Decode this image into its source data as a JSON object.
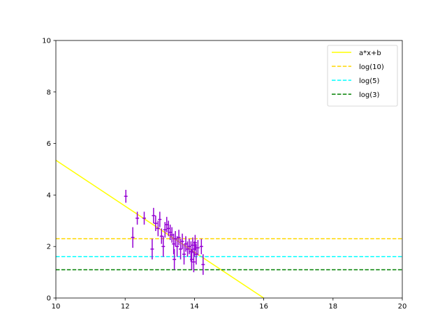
{
  "chart_data": {
    "type": "scatter",
    "title": "",
    "xlabel": "",
    "ylabel": "",
    "xlim": [
      10,
      20
    ],
    "ylim": [
      0,
      10
    ],
    "xticks": [
      10,
      12,
      14,
      16,
      18,
      20
    ],
    "yticks": [
      0,
      2,
      4,
      6,
      8,
      10
    ],
    "grid": false,
    "legend_position": "top-right",
    "lines": [
      {
        "name": "a*x+b",
        "kind": "fit",
        "x": [
          10,
          16
        ],
        "y": [
          5.35,
          0.0
        ],
        "color": "#ffff00",
        "dash": "solid"
      },
      {
        "name": "log(10)",
        "kind": "hline",
        "y": 2.303,
        "color": "#ffd700",
        "dash": "dashed"
      },
      {
        "name": "log(5)",
        "kind": "hline",
        "y": 1.609,
        "color": "#00ffff",
        "dash": "dashed"
      },
      {
        "name": "log(3)",
        "kind": "hline",
        "y": 1.099,
        "color": "#008000",
        "dash": "dashed"
      }
    ],
    "errorbar_series": {
      "color": "#9400d3",
      "xerr": 0.05,
      "points": [
        {
          "x": 12.02,
          "y": 3.95,
          "yerr": 0.25
        },
        {
          "x": 12.22,
          "y": 2.35,
          "yerr": 0.4
        },
        {
          "x": 12.35,
          "y": 3.1,
          "yerr": 0.25
        },
        {
          "x": 12.55,
          "y": 3.1,
          "yerr": 0.25
        },
        {
          "x": 12.78,
          "y": 1.9,
          "yerr": 0.4
        },
        {
          "x": 12.82,
          "y": 3.2,
          "yerr": 0.3
        },
        {
          "x": 12.88,
          "y": 2.9,
          "yerr": 0.3
        },
        {
          "x": 12.95,
          "y": 2.7,
          "yerr": 0.3
        },
        {
          "x": 13.0,
          "y": 3.05,
          "yerr": 0.3
        },
        {
          "x": 13.05,
          "y": 2.4,
          "yerr": 0.3
        },
        {
          "x": 13.1,
          "y": 2.0,
          "yerr": 0.4
        },
        {
          "x": 13.15,
          "y": 2.65,
          "yerr": 0.3
        },
        {
          "x": 13.2,
          "y": 2.85,
          "yerr": 0.3
        },
        {
          "x": 13.25,
          "y": 2.7,
          "yerr": 0.3
        },
        {
          "x": 13.3,
          "y": 2.55,
          "yerr": 0.3
        },
        {
          "x": 13.35,
          "y": 2.45,
          "yerr": 0.3
        },
        {
          "x": 13.4,
          "y": 2.1,
          "yerr": 0.4
        },
        {
          "x": 13.42,
          "y": 1.5,
          "yerr": 0.4
        },
        {
          "x": 13.45,
          "y": 2.3,
          "yerr": 0.3
        },
        {
          "x": 13.5,
          "y": 2.0,
          "yerr": 0.4
        },
        {
          "x": 13.55,
          "y": 2.35,
          "yerr": 0.3
        },
        {
          "x": 13.6,
          "y": 1.9,
          "yerr": 0.4
        },
        {
          "x": 13.65,
          "y": 2.2,
          "yerr": 0.3
        },
        {
          "x": 13.7,
          "y": 1.7,
          "yerr": 0.4
        },
        {
          "x": 13.75,
          "y": 2.1,
          "yerr": 0.3
        },
        {
          "x": 13.8,
          "y": 1.9,
          "yerr": 0.3
        },
        {
          "x": 13.85,
          "y": 2.0,
          "yerr": 0.3
        },
        {
          "x": 13.9,
          "y": 1.8,
          "yerr": 0.4
        },
        {
          "x": 13.92,
          "y": 1.5,
          "yerr": 0.4
        },
        {
          "x": 13.95,
          "y": 2.05,
          "yerr": 0.3
        },
        {
          "x": 13.98,
          "y": 1.4,
          "yerr": 0.4
        },
        {
          "x": 14.0,
          "y": 1.9,
          "yerr": 0.3
        },
        {
          "x": 14.02,
          "y": 2.15,
          "yerr": 0.3
        },
        {
          "x": 14.05,
          "y": 1.7,
          "yerr": 0.4
        },
        {
          "x": 14.1,
          "y": 1.95,
          "yerr": 0.3
        },
        {
          "x": 14.2,
          "y": 2.0,
          "yerr": 0.3
        },
        {
          "x": 14.25,
          "y": 1.3,
          "yerr": 0.4
        }
      ]
    }
  }
}
